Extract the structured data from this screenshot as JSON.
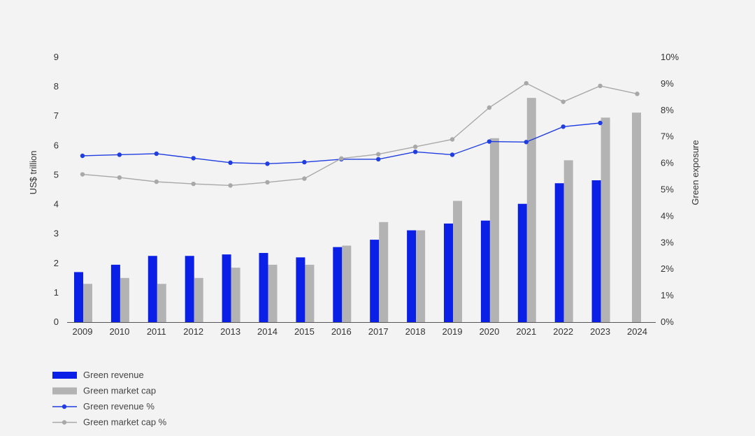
{
  "chart_data": {
    "type": "bar",
    "categories": [
      "2009",
      "2010",
      "2011",
      "2012",
      "2013",
      "2014",
      "2015",
      "2016",
      "2017",
      "2018",
      "2019",
      "2020",
      "2021",
      "2022",
      "2023",
      "2024"
    ],
    "series": [
      {
        "name": "Green revenue",
        "kind": "bar",
        "axis": "left",
        "color": "#0a20e6",
        "values": [
          1.7,
          1.95,
          2.25,
          2.25,
          2.3,
          2.35,
          2.2,
          2.55,
          2.8,
          3.12,
          3.35,
          3.45,
          4.02,
          4.72,
          4.82,
          null
        ]
      },
      {
        "name": "Green market cap",
        "kind": "bar",
        "axis": "left",
        "color": "#b3b3b3",
        "values": [
          1.3,
          1.5,
          1.3,
          1.5,
          1.85,
          1.95,
          1.95,
          2.6,
          3.4,
          3.12,
          4.12,
          6.25,
          7.62,
          5.5,
          6.95,
          7.12
        ]
      },
      {
        "name": "Green revenue %",
        "kind": "line",
        "axis": "right",
        "color": "#1f3de0",
        "values": [
          6.28,
          6.32,
          6.36,
          6.19,
          6.02,
          5.98,
          6.04,
          6.15,
          6.15,
          6.43,
          6.32,
          6.82,
          6.8,
          7.38,
          7.52,
          null
        ]
      },
      {
        "name": "Green market cap %",
        "kind": "line",
        "axis": "right",
        "color": "#a8a8a8",
        "values": [
          5.58,
          5.46,
          5.3,
          5.22,
          5.16,
          5.28,
          5.42,
          6.18,
          6.34,
          6.62,
          6.9,
          8.1,
          9.02,
          8.32,
          8.92,
          8.62
        ]
      }
    ],
    "y_left": {
      "label": "US$ trillion",
      "ylim": [
        0,
        9
      ],
      "ticks": [
        "0",
        "1",
        "2",
        "3",
        "4",
        "5",
        "6",
        "7",
        "8",
        "9"
      ]
    },
    "y_right": {
      "label": "Green exposure",
      "ylim": [
        0,
        10
      ],
      "ticks": [
        "0%",
        "1%",
        "2%",
        "3%",
        "4%",
        "5%",
        "6%",
        "7%",
        "8%",
        "9%",
        "10%"
      ]
    },
    "grid": false,
    "legend_position": "bottom-left"
  }
}
